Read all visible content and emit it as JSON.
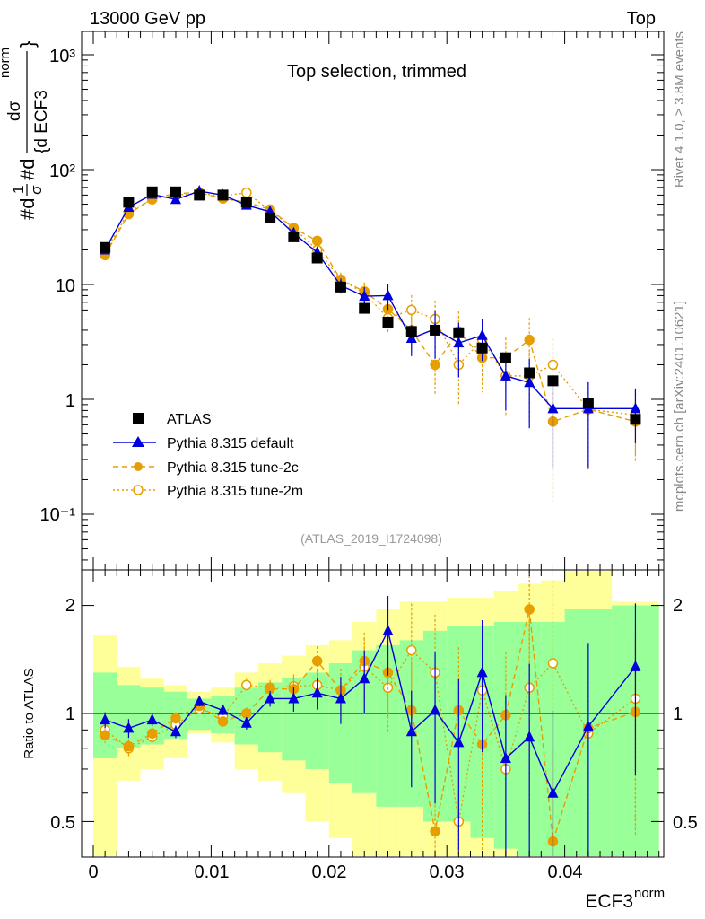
{
  "header": {
    "left": "13000 GeV pp",
    "right": "Top"
  },
  "side_labels": {
    "rivet": "Rivet 4.1.0, ≥ 3.8M events",
    "mcplots": "mcplots.cern.ch [arXiv:2401.10621]"
  },
  "main_plot": {
    "title": "Top selection, trimmed",
    "analysis_id": "(ATLAS_2019_I1724098)",
    "ylabel_parts": {
      "prefix": "#d",
      "one": "1",
      "sigma": "σ",
      "d1": "#d",
      "num": "dσ",
      "den": "{d ECF3",
      "sup": "norm",
      "close": "}"
    },
    "ytick_labels": [
      "10⁻¹",
      "1",
      "10",
      "10²",
      "10³"
    ]
  },
  "ratio_plot": {
    "ylabel": "Ratio to ATLAS",
    "ytick_labels": [
      "0.5",
      "1",
      "2"
    ]
  },
  "xaxis": {
    "label": "ECF3",
    "label_sup": "norm",
    "tick_labels": [
      "0",
      "0.01",
      "0.02",
      "0.03",
      "0.04"
    ]
  },
  "legend": [
    {
      "label": "ATLAS",
      "marker": "square-filled",
      "color": "#000000"
    },
    {
      "label": "Pythia 8.315 default",
      "marker": "triangle-filled",
      "color": "#0000dd"
    },
    {
      "label": "Pythia 8.315 tune-2c",
      "marker": "circle-filled",
      "color": "#e69e00"
    },
    {
      "label": "Pythia 8.315 tune-2m",
      "marker": "circle-open",
      "color": "#e69e00"
    }
  ],
  "chart_data": {
    "type": "scatter",
    "xlabel": "ECF3^norm",
    "ylabel": "1/sigma dsigma/d ECF3^norm",
    "xlim": [
      -0.001,
      0.049
    ],
    "ylim": [
      0.03,
      1500
    ],
    "yscale": "log",
    "ratio_ylim": [
      0.4,
      2.45
    ],
    "ratio_yscale": "log",
    "bins": [
      [
        0,
        0.002
      ],
      [
        0.002,
        0.004
      ],
      [
        0.004,
        0.006
      ],
      [
        0.006,
        0.008
      ],
      [
        0.008,
        0.01
      ],
      [
        0.01,
        0.012
      ],
      [
        0.012,
        0.014
      ],
      [
        0.014,
        0.016
      ],
      [
        0.016,
        0.018
      ],
      [
        0.018,
        0.02
      ],
      [
        0.02,
        0.022
      ],
      [
        0.022,
        0.024
      ],
      [
        0.024,
        0.026
      ],
      [
        0.026,
        0.028
      ],
      [
        0.028,
        0.03
      ],
      [
        0.03,
        0.032
      ],
      [
        0.032,
        0.034
      ],
      [
        0.034,
        0.036
      ],
      [
        0.036,
        0.038
      ],
      [
        0.038,
        0.04
      ],
      [
        0.04,
        0.044
      ],
      [
        0.044,
        0.048
      ]
    ],
    "x": [
      0.001,
      0.003,
      0.005,
      0.007,
      0.009,
      0.011,
      0.013,
      0.015,
      0.017,
      0.019,
      0.021,
      0.023,
      0.025,
      0.027,
      0.029,
      0.031,
      0.033,
      0.035,
      0.037,
      0.039,
      0.042,
      0.046
    ],
    "series": [
      {
        "name": "ATLAS",
        "values": [
          21,
          52,
          64,
          64,
          60,
          60,
          52,
          38,
          26,
          17,
          9.5,
          6.2,
          4.7,
          3.9,
          4.0,
          3.8,
          2.8,
          2.3,
          1.7,
          1.45,
          0.93,
          0.67
        ],
        "ratio_band_inner": [
          [
            0.75,
            1.3
          ],
          [
            0.8,
            1.2
          ],
          [
            0.82,
            1.18
          ],
          [
            0.85,
            1.15
          ],
          [
            0.9,
            1.1
          ],
          [
            0.88,
            1.12
          ],
          [
            0.82,
            1.18
          ],
          [
            0.78,
            1.22
          ],
          [
            0.74,
            1.26
          ],
          [
            0.7,
            1.3
          ],
          [
            0.64,
            1.38
          ],
          [
            0.6,
            1.5
          ],
          [
            0.55,
            1.55
          ],
          [
            0.55,
            1.6
          ],
          [
            0.5,
            1.7
          ],
          [
            0.5,
            1.75
          ],
          [
            0.45,
            1.75
          ],
          [
            0.42,
            1.8
          ],
          [
            0.4,
            1.8
          ],
          [
            0.4,
            1.8
          ],
          [
            0.35,
            1.95
          ],
          [
            0.35,
            2.0
          ]
        ],
        "ratio_band_outer": [
          [
            0.35,
            1.65
          ],
          [
            0.65,
            1.35
          ],
          [
            0.7,
            1.25
          ],
          [
            0.75,
            1.2
          ],
          [
            0.88,
            1.15
          ],
          [
            0.83,
            1.18
          ],
          [
            0.7,
            1.3
          ],
          [
            0.65,
            1.38
          ],
          [
            0.6,
            1.45
          ],
          [
            0.5,
            1.55
          ],
          [
            0.45,
            1.6
          ],
          [
            0.4,
            1.8
          ],
          [
            0.35,
            1.95
          ],
          [
            0.35,
            2.05
          ],
          [
            0.3,
            2.05
          ],
          [
            0.3,
            2.1
          ],
          [
            0.3,
            2.1
          ],
          [
            0.3,
            2.2
          ],
          [
            0.3,
            2.3
          ],
          [
            0.35,
            2.35
          ],
          [
            0.3,
            2.6
          ],
          [
            0.35,
            2.05
          ]
        ]
      },
      {
        "name": "Pythia 8.315 default",
        "values": [
          20,
          47,
          61,
          55,
          65,
          60,
          49,
          43,
          28,
          19,
          9.8,
          7.9,
          8.0,
          3.4,
          4.1,
          3.1,
          3.6,
          1.6,
          1.4,
          0.83,
          0.83,
          0.83
        ],
        "errors": [
          0.05,
          0.06,
          0.04,
          0.04,
          0.03,
          0.03,
          0.04,
          0.05,
          0.08,
          0.1,
          0.15,
          0.2,
          0.25,
          0.3,
          0.45,
          0.5,
          0.4,
          0.5,
          0.6,
          0.7,
          0.7,
          0.5
        ],
        "ratio": [
          0.96,
          0.91,
          0.96,
          0.89,
          1.08,
          1.02,
          0.94,
          1.1,
          1.1,
          1.14,
          1.1,
          1.25,
          1.7,
          0.89,
          1.02,
          0.83,
          1.3,
          0.75,
          0.86,
          0.6,
          0.92,
          1.35
        ]
      },
      {
        "name": "Pythia 8.315 tune-2c",
        "values": [
          18,
          41,
          56,
          62,
          63,
          56,
          52,
          45,
          31,
          24,
          11,
          8.7,
          6.1,
          4.0,
          2.0,
          3.9,
          2.3,
          2.3,
          3.3,
          0.64,
          0.82,
          0.64
        ],
        "errors": [
          0.05,
          0.05,
          0.04,
          0.04,
          0.03,
          0.03,
          0.04,
          0.05,
          0.08,
          0.1,
          0.15,
          0.2,
          0.25,
          0.35,
          0.45,
          0.5,
          0.5,
          0.5,
          0.55,
          0.8,
          0.7,
          0.55
        ],
        "ratio": [
          0.87,
          0.81,
          0.88,
          0.97,
          1.05,
          0.95,
          1.0,
          1.17,
          1.17,
          1.4,
          1.16,
          1.4,
          1.3,
          1.02,
          0.47,
          1.02,
          0.82,
          0.99,
          1.95,
          0.44,
          0.91,
          1.01
        ]
      },
      {
        "name": "Pythia 8.315 tune-2m",
        "values": [
          19,
          43,
          55,
          60,
          62,
          59,
          63,
          44,
          31,
          20,
          11,
          8.4,
          5.1,
          6.0,
          5.0,
          2.0,
          3.3,
          1.6,
          1.6,
          2.0,
          0.82,
          0.73
        ],
        "errors": [
          0.05,
          0.05,
          0.04,
          0.04,
          0.03,
          0.03,
          0.04,
          0.05,
          0.08,
          0.1,
          0.15,
          0.2,
          0.25,
          0.35,
          0.45,
          0.55,
          0.5,
          0.55,
          0.6,
          0.7,
          0.7,
          0.55
        ],
        "ratio": [
          0.9,
          0.8,
          0.86,
          0.93,
          1.03,
          0.98,
          1.2,
          1.18,
          1.19,
          1.2,
          1.16,
          1.35,
          1.18,
          1.5,
          1.3,
          0.5,
          1.16,
          0.7,
          1.18,
          1.38,
          0.88,
          1.1
        ]
      }
    ]
  }
}
